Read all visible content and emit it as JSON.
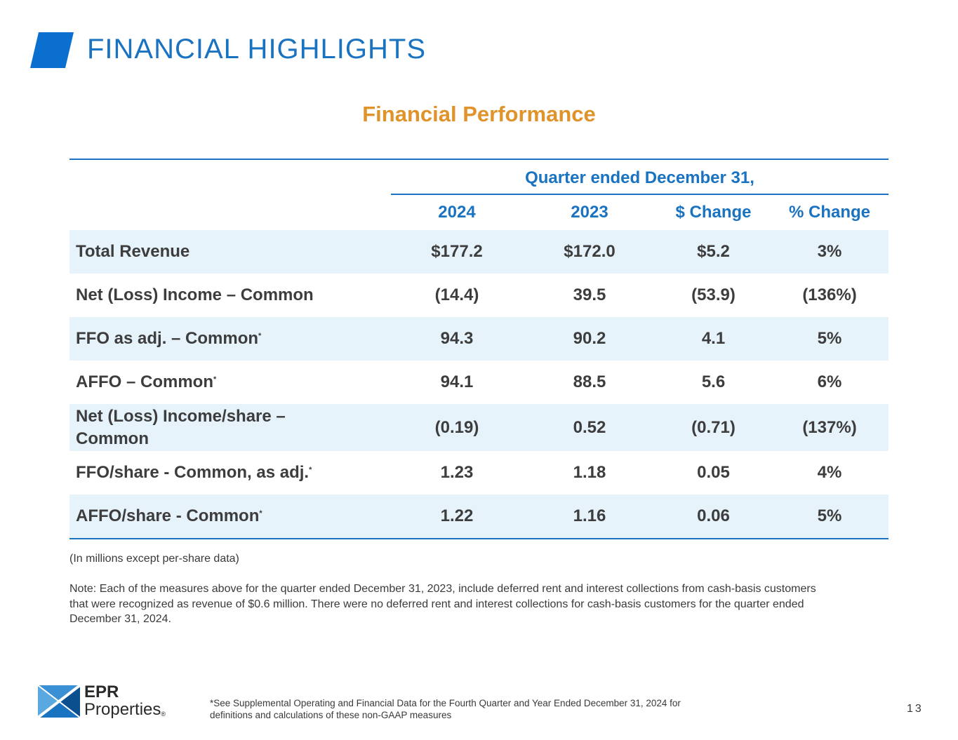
{
  "header": {
    "title": "FINANCIAL HIGHLIGHTS",
    "accent_color": "#0b6fd0"
  },
  "section": {
    "title": "Financial Performance",
    "title_color": "#e0932a"
  },
  "table": {
    "group_header": "Quarter ended December 31,",
    "columns": [
      "2024",
      "2023",
      "$ Change",
      "% Change"
    ],
    "rows": [
      {
        "label": "Total Revenue",
        "footnote": "",
        "v2024": "$177.2",
        "v2023": "$172.0",
        "dchg": "$5.2",
        "pchg": "3%"
      },
      {
        "label": "Net (Loss) Income – Common",
        "footnote": "",
        "v2024": "(14.4)",
        "v2023": "39.5",
        "dchg": "(53.9)",
        "pchg": "(136%)"
      },
      {
        "label": "FFO as adj. – Common",
        "footnote": "*",
        "v2024": "94.3",
        "v2023": "90.2",
        "dchg": "4.1",
        "pchg": "5%"
      },
      {
        "label": "AFFO – Common",
        "footnote": "*",
        "v2024": "94.1",
        "v2023": "88.5",
        "dchg": "5.6",
        "pchg": "6%"
      },
      {
        "label": "Net (Loss) Income/share – Common",
        "footnote": "",
        "v2024": "(0.19)",
        "v2023": "0.52",
        "dchg": "(0.71)",
        "pchg": "(137%)"
      },
      {
        "label": "FFO/share - Common, as adj.",
        "footnote": "*",
        "v2024": "1.23",
        "v2023": "1.18",
        "dchg": "0.05",
        "pchg": "4%"
      },
      {
        "label": "AFFO/share - Common",
        "footnote": "*",
        "v2024": "1.22",
        "v2023": "1.16",
        "dchg": "0.06",
        "pchg": "5%"
      }
    ]
  },
  "notes": {
    "units": "(In millions except per-share data)",
    "note": "Note:  Each of the measures above for the quarter ended December 31, 2023, include deferred rent and interest collections from cash-basis customers that were recognized as revenue of $0.6 million.  There were no deferred rent and interest collections for cash-basis customers for the quarter ended December 31, 2024."
  },
  "footer": {
    "logo_line1": "EPR",
    "logo_line2": "Properties",
    "logo_reg": "®",
    "source_note": "*See Supplemental Operating and Financial Data for the Fourth Quarter and Year Ended December 31, 2024 for definitions and calculations of these non-GAAP measures",
    "page_number": "13"
  }
}
